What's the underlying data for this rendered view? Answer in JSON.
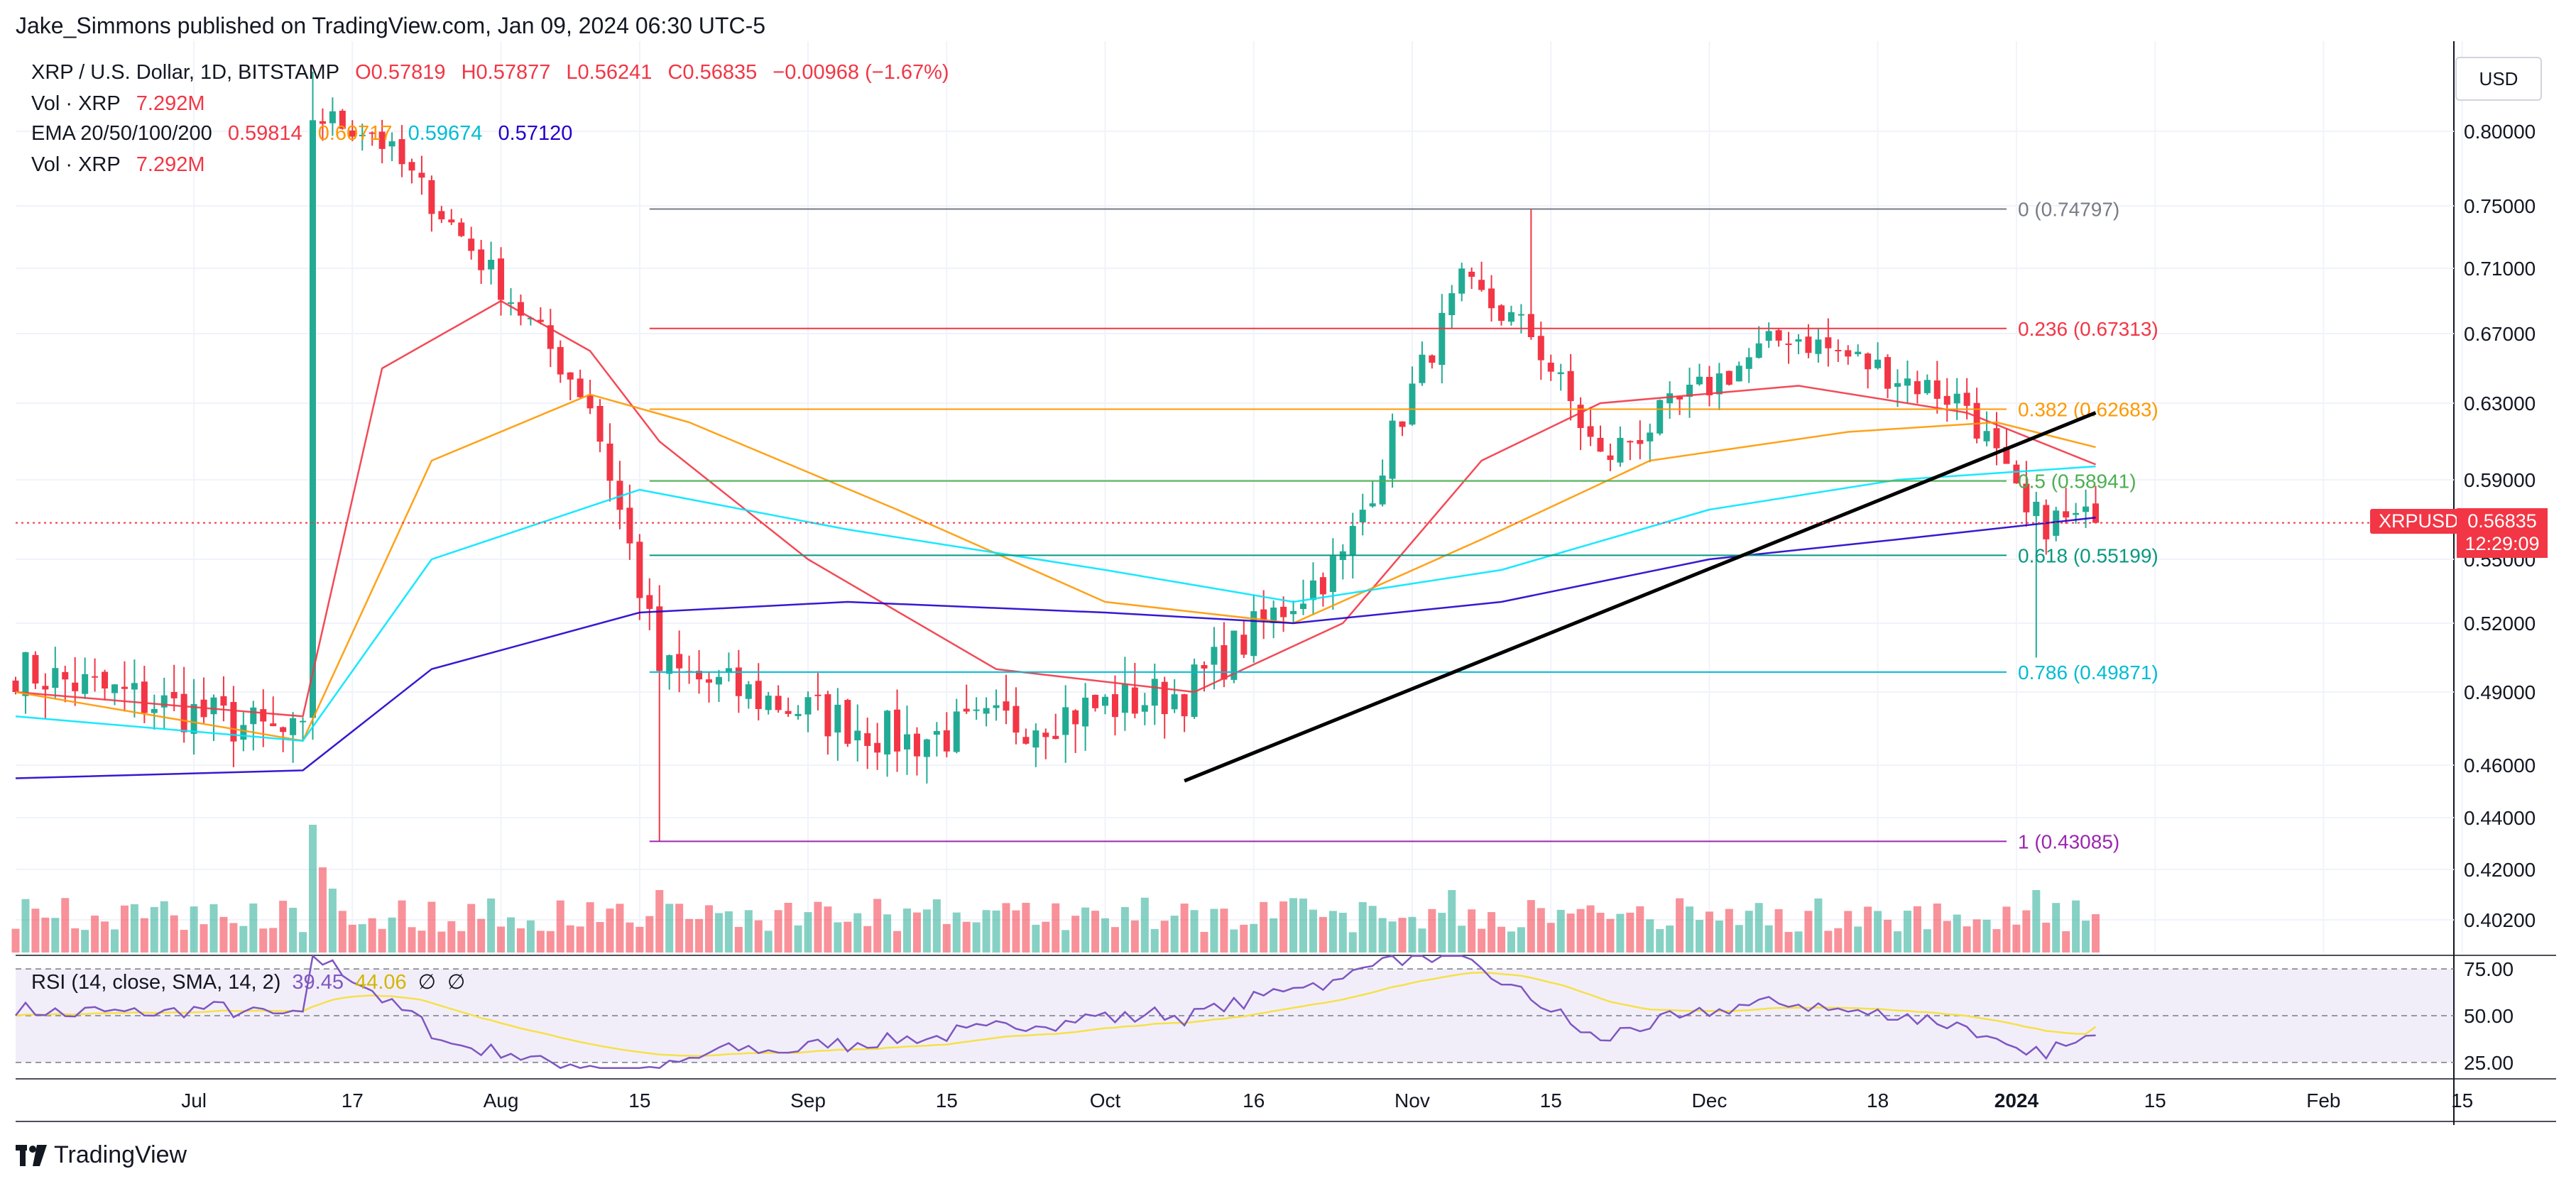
{
  "publisher": "Jake_Simmons published on TradingView.com, Jan 09, 2024 06:30 UTC-5",
  "legend": {
    "symbol": "XRP / U.S. Dollar, 1D, BITSTAMP",
    "open": "O0.57819",
    "high": "H0.57877",
    "low": "L0.56241",
    "close": "C0.56835",
    "change": "−0.00968 (−1.67%)",
    "vol1_label": "Vol · XRP",
    "vol1_value": "7.292M",
    "ema_label": "EMA 20/50/100/200",
    "ema20": "0.59814",
    "ema50": "0.60717",
    "ema100": "0.59674",
    "ema200": "0.57120",
    "vol2_label": "Vol · XRP",
    "vol2_value": "7.292M"
  },
  "currency": "USD",
  "ticker_tag": "XRPUSD",
  "price_tag": {
    "price": "0.56835",
    "countdown": "12:29:09"
  },
  "rsi_legend": {
    "label": "RSI (14, close, SMA, 14, 2)",
    "rsi": "39.45",
    "sma": "44.06",
    "s1": "∅",
    "s2": "∅"
  },
  "brand": "TradingView",
  "colors": {
    "up": "#22ab94",
    "down": "#f23645",
    "ema20": "#f23645",
    "ema50": "#ff9800",
    "ema100": "#00e5ff",
    "ema200": "#2200cc",
    "rsi": "#7e57c2",
    "rsi_sma": "#f5e14a"
  },
  "chart_data": {
    "type": "candlestick",
    "title": "XRP / U.S. Dollar, 1D, BITSTAMP",
    "ylim": [
      0.39,
      0.84
    ],
    "y_ticks": [
      "0.80000",
      "0.75000",
      "0.71000",
      "0.67000",
      "0.63000",
      "0.59000",
      "0.55000",
      "0.52000",
      "0.49000",
      "0.46000",
      "0.44000",
      "0.42000",
      "0.40200"
    ],
    "x_ticks": [
      "Jul",
      "17",
      "Aug",
      "15",
      "Sep",
      "15",
      "Oct",
      "16",
      "Nov",
      "15",
      "Dec",
      "18",
      "2024",
      "15",
      "Feb",
      "15"
    ],
    "x_start": "2023-06-13",
    "fib_levels": [
      {
        "ratio": "0",
        "price": 0.74797,
        "label": "0 (0.74797)",
        "color": "#787b86"
      },
      {
        "ratio": "0.236",
        "price": 0.67313,
        "label": "0.236 (0.67313)",
        "color": "#f23645"
      },
      {
        "ratio": "0.382",
        "price": 0.62683,
        "label": "0.382 (0.62683)",
        "color": "#ff9800"
      },
      {
        "ratio": "0.5",
        "price": 0.58941,
        "label": "0.5 (0.58941)",
        "color": "#4caf50"
      },
      {
        "ratio": "0.618",
        "price": 0.55199,
        "label": "0.618 (0.55199)",
        "color": "#089981"
      },
      {
        "ratio": "0.786",
        "price": 0.49871,
        "label": "0.786 (0.49871)",
        "color": "#00bcd4"
      },
      {
        "ratio": "1",
        "price": 0.43085,
        "label": "1 (0.43085)",
        "color": "#9c27b0"
      }
    ],
    "trendline": {
      "x1": "2023-10-09",
      "y1": 0.454,
      "x2": "2024-01-09",
      "y2": 0.625
    },
    "last_price": 0.56835,
    "candles_key_points": [
      {
        "date": "2023-06-13",
        "close": 0.5
      },
      {
        "date": "2023-07-12",
        "close": 0.47
      },
      {
        "date": "2023-07-13",
        "close": 0.81
      },
      {
        "date": "2023-07-19",
        "close": 0.8
      },
      {
        "date": "2023-08-10",
        "close": 0.63
      },
      {
        "date": "2023-08-17",
        "close": 0.5
      },
      {
        "date": "2023-09-11",
        "close": 0.47
      },
      {
        "date": "2023-10-09",
        "close": 0.49
      },
      {
        "date": "2023-10-25",
        "close": 0.55
      },
      {
        "date": "2023-11-06",
        "close": 0.7
      },
      {
        "date": "2023-11-13",
        "close": 0.67
      },
      {
        "date": "2023-11-20",
        "close": 0.6
      },
      {
        "date": "2023-12-09",
        "close": 0.67
      },
      {
        "date": "2023-12-27",
        "close": 0.63
      },
      {
        "date": "2024-01-02",
        "close": 0.57
      },
      {
        "date": "2024-01-09",
        "close": 0.56835
      }
    ],
    "ema": {
      "ema20": [
        [
          "2023-06-13",
          0.49
        ],
        [
          "2023-07-12",
          0.48
        ],
        [
          "2023-07-20",
          0.65
        ],
        [
          "2023-08-01",
          0.69
        ],
        [
          "2023-08-10",
          0.66
        ],
        [
          "2023-08-17",
          0.61
        ],
        [
          "2023-09-01",
          0.55
        ],
        [
          "2023-09-20",
          0.5
        ],
        [
          "2023-10-10",
          0.49
        ],
        [
          "2023-10-25",
          0.52
        ],
        [
          "2023-11-08",
          0.6
        ],
        [
          "2023-11-20",
          0.63
        ],
        [
          "2023-12-10",
          0.64
        ],
        [
          "2023-12-27",
          0.625
        ],
        [
          "2024-01-09",
          0.598
        ]
      ],
      "ema50": [
        [
          "2023-06-13",
          0.49
        ],
        [
          "2023-07-12",
          0.47
        ],
        [
          "2023-07-25",
          0.6
        ],
        [
          "2023-08-10",
          0.635
        ],
        [
          "2023-08-20",
          0.62
        ],
        [
          "2023-09-10",
          0.575
        ],
        [
          "2023-10-01",
          0.53
        ],
        [
          "2023-10-20",
          0.52
        ],
        [
          "2023-11-08",
          0.56
        ],
        [
          "2023-11-25",
          0.6
        ],
        [
          "2023-12-15",
          0.615
        ],
        [
          "2023-12-30",
          0.62
        ],
        [
          "2024-01-09",
          0.607
        ]
      ],
      "ema100": [
        [
          "2023-06-13",
          0.48
        ],
        [
          "2023-07-12",
          0.47
        ],
        [
          "2023-07-25",
          0.55
        ],
        [
          "2023-08-15",
          0.585
        ],
        [
          "2023-09-05",
          0.565
        ],
        [
          "2023-10-01",
          0.545
        ],
        [
          "2023-10-20",
          0.53
        ],
        [
          "2023-11-10",
          0.545
        ],
        [
          "2023-12-01",
          0.575
        ],
        [
          "2023-12-20",
          0.59
        ],
        [
          "2024-01-09",
          0.597
        ]
      ],
      "ema200": [
        [
          "2023-06-13",
          0.455
        ],
        [
          "2023-07-12",
          0.458
        ],
        [
          "2023-07-25",
          0.5
        ],
        [
          "2023-08-15",
          0.525
        ],
        [
          "2023-09-05",
          0.53
        ],
        [
          "2023-10-01",
          0.525
        ],
        [
          "2023-10-20",
          0.52
        ],
        [
          "2023-11-10",
          0.53
        ],
        [
          "2023-12-01",
          0.55
        ],
        [
          "2023-12-20",
          0.56
        ],
        [
          "2024-01-09",
          0.571
        ]
      ]
    },
    "rsi": {
      "ylim": [
        20,
        80
      ],
      "ticks": [
        "75.00",
        "50.00",
        "25.00"
      ],
      "current": 39.45,
      "sma": 44.06
    }
  }
}
